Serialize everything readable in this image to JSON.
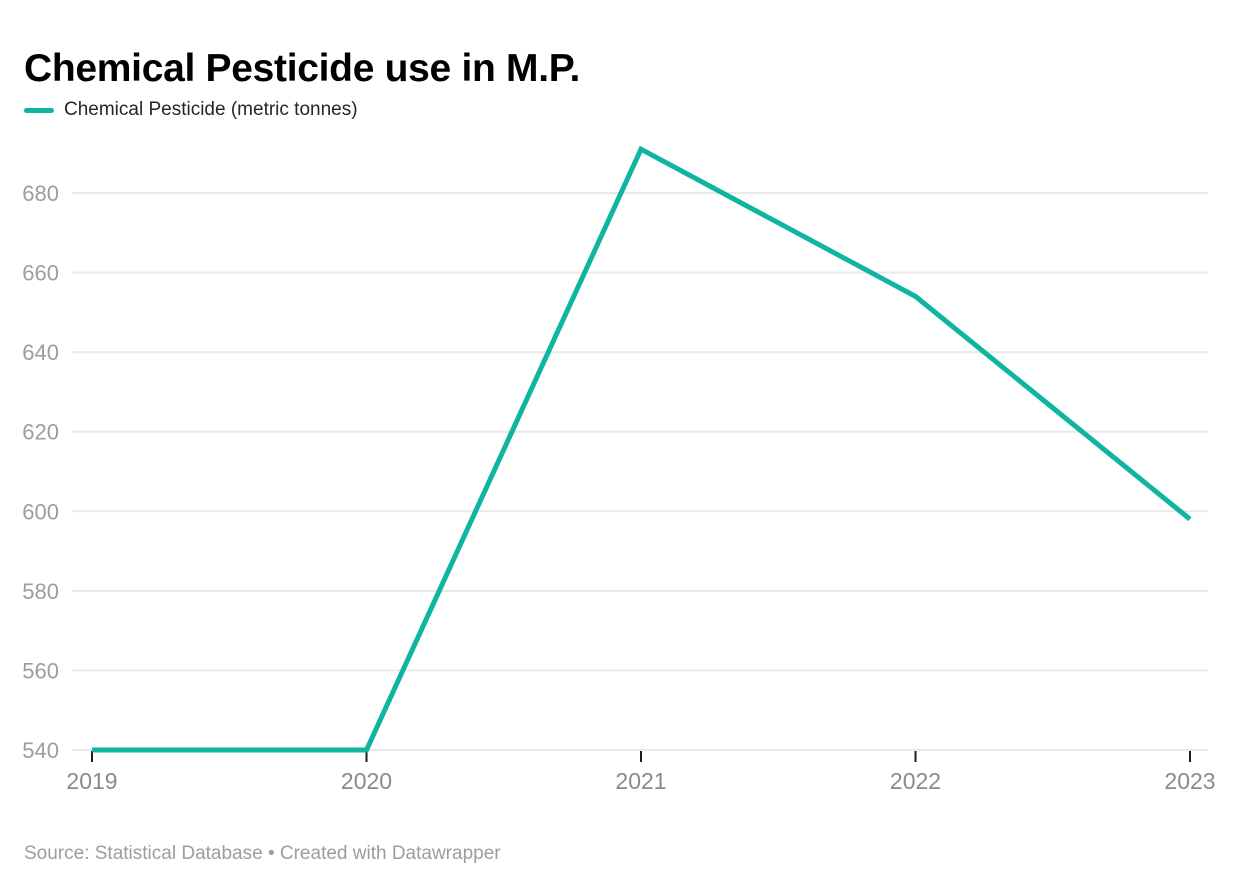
{
  "chart_data": {
    "type": "line",
    "title": "Chemical Pesticide use in M.P.",
    "legend": [
      {
        "label": "Chemical Pesticide (metric tonnes)"
      }
    ],
    "legend_position": "top-left",
    "x": [
      "2019",
      "2020",
      "2021",
      "2022",
      "2023"
    ],
    "series": [
      {
        "name": "Chemical Pesticide (metric tonnes)",
        "values": [
          540,
          540,
          691,
          654,
          598
        ]
      }
    ],
    "xlabel": "",
    "ylabel": "",
    "yticks": [
      540,
      560,
      580,
      600,
      620,
      640,
      660,
      680
    ],
    "ylim": [
      540,
      693
    ],
    "grid": "horizontal",
    "colors": {
      "accent": "#0fb5a1",
      "grid": "#e9e9e9",
      "y_tick_label": "#9d9d9d",
      "x_tick_label": "#8a8a8a",
      "tick_mark": "#1c1c1c",
      "title": "#000000",
      "legend_text": "#262626",
      "source_text": "#9d9d9d"
    }
  },
  "footer": {
    "source": "Source: Statistical Database • Created with Datawrapper"
  }
}
